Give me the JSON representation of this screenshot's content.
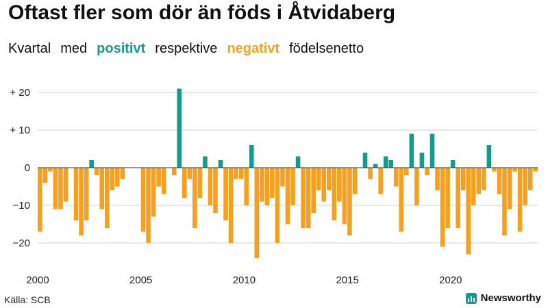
{
  "header": {
    "title": "Oftast fler som dör än föds i Åtvidaberg",
    "subtitle_1": "Kvartal",
    "subtitle_2": "med",
    "subtitle_pos": "positivt",
    "subtitle_3": "respektive",
    "subtitle_neg": "negativt",
    "subtitle_4": "födelsenetto"
  },
  "colors": {
    "positive": "#159a8e",
    "negative": "#f7a020",
    "brand": "#159a8e"
  },
  "footer": {
    "source": "Källa: SCB",
    "brand": "Newsworthy"
  },
  "chart_data": {
    "type": "bar",
    "title": "Oftast fler som dör än föds i Åtvidaberg",
    "subtitle": "Kvartal med positivt respektive negativt födelsenetto",
    "xlabel": "",
    "ylabel": "",
    "start_year": 2000,
    "periods_per_year": 4,
    "ylim": [
      -25,
      22
    ],
    "y_ticks": [
      20,
      10,
      0,
      -10,
      -20
    ],
    "y_tick_labels": [
      "+ 20",
      "+ 10",
      "0",
      "−10",
      "−20"
    ],
    "x_tick_labels": [
      "2000",
      "2005",
      "2010",
      "2015",
      "2020"
    ],
    "grid": true,
    "values": [
      -17,
      -4,
      -1,
      -11,
      -11,
      -9,
      0,
      -14,
      -18,
      -14,
      2,
      -2,
      -11,
      -16,
      -6,
      -5,
      -3,
      0,
      0,
      0,
      -17,
      -20,
      -13,
      -5,
      -7,
      0,
      -2,
      21,
      -8,
      -3,
      -16,
      -8,
      3,
      -10,
      -12,
      2,
      -14,
      -20,
      -3,
      -3,
      -10,
      6,
      -24,
      -9,
      -10,
      -8,
      -20,
      -5,
      -15,
      -10,
      3,
      -16,
      -16,
      -12,
      -6,
      -9,
      -6,
      -14,
      -9,
      -15,
      -18,
      -7,
      0,
      4,
      -3,
      1,
      -7,
      3,
      2,
      -5,
      -17,
      -2,
      9,
      -10,
      4,
      -2,
      9,
      -6,
      -21,
      -16,
      2,
      -16,
      -6,
      -23,
      -10,
      -7,
      -6,
      6,
      -1,
      -7,
      -18,
      -11,
      -1,
      -17,
      -10,
      -6,
      -1
    ]
  }
}
